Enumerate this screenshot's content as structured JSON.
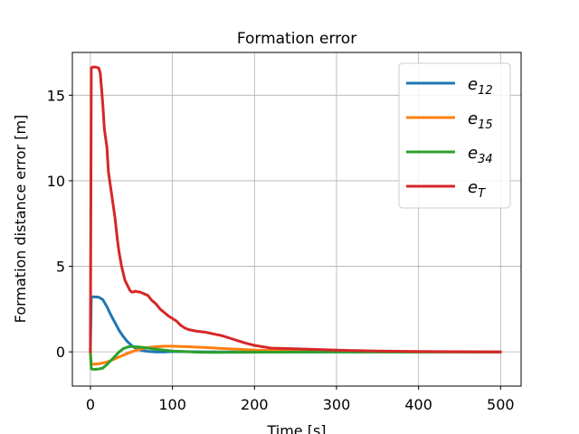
{
  "chart_data": {
    "type": "line",
    "title": "Formation error",
    "xlabel": "Time [s]",
    "ylabel": "Formation distance error [m]",
    "xlim": [
      -22,
      525
    ],
    "ylim": [
      -2.0,
      17.5
    ],
    "xticks": [
      0,
      100,
      200,
      300,
      400,
      500
    ],
    "yticks": [
      0,
      5,
      10,
      15
    ],
    "grid": true,
    "legend_position": "upper right",
    "series": [
      {
        "name": "e12",
        "name_base": "e",
        "name_sub": "12",
        "color": "#1f77b4",
        "x": [
          0,
          1,
          3,
          10,
          15,
          20,
          25,
          30,
          35,
          40,
          45,
          50,
          55,
          60,
          65,
          70,
          80,
          90,
          100,
          150,
          200,
          300,
          400,
          500
        ],
        "y": [
          0,
          3.2,
          3.22,
          3.2,
          3.05,
          2.65,
          2.15,
          1.7,
          1.25,
          0.9,
          0.6,
          0.38,
          0.22,
          0.12,
          0.06,
          0.03,
          0.0,
          0.0,
          0.02,
          0.0,
          0.0,
          0.0,
          0.0,
          0.0
        ]
      },
      {
        "name": "e15",
        "name_base": "e",
        "name_sub": "15",
        "color": "#ff7f0e",
        "x": [
          0,
          1,
          5,
          10,
          20,
          30,
          40,
          50,
          60,
          70,
          80,
          90,
          100,
          120,
          140,
          160,
          180,
          200,
          250,
          300,
          400,
          500
        ],
        "y": [
          0,
          -0.7,
          -0.72,
          -0.7,
          -0.6,
          -0.4,
          -0.2,
          0.0,
          0.15,
          0.25,
          0.3,
          0.33,
          0.33,
          0.3,
          0.25,
          0.2,
          0.15,
          0.1,
          0.05,
          0.02,
          0.0,
          0.0
        ]
      },
      {
        "name": "e34",
        "name_base": "e",
        "name_sub": "34",
        "color": "#2ca02c",
        "x": [
          0,
          1,
          5,
          10,
          15,
          20,
          25,
          30,
          35,
          40,
          45,
          50,
          55,
          60,
          70,
          80,
          100,
          130,
          150,
          200,
          300,
          500
        ],
        "y": [
          0,
          -1.0,
          -1.02,
          -1.0,
          -0.95,
          -0.75,
          -0.5,
          -0.25,
          0.0,
          0.18,
          0.28,
          0.32,
          0.3,
          0.28,
          0.22,
          0.15,
          0.05,
          -0.02,
          -0.03,
          -0.02,
          0.0,
          0.0
        ]
      },
      {
        "name": "eT",
        "name_base": "e",
        "name_sub": "T",
        "color": "#d62728",
        "x": [
          0,
          1,
          3,
          5,
          8,
          10,
          12,
          15,
          17,
          20,
          22,
          25,
          28,
          30,
          33,
          35,
          38,
          40,
          42,
          45,
          48,
          50,
          53,
          55,
          58,
          60,
          65,
          70,
          75,
          80,
          85,
          90,
          95,
          100,
          105,
          110,
          115,
          120,
          130,
          140,
          150,
          160,
          170,
          180,
          190,
          200,
          210,
          220,
          250,
          300,
          350,
          400,
          450,
          500
        ],
        "y": [
          0,
          16.6,
          16.65,
          16.65,
          16.62,
          16.6,
          16.3,
          14.5,
          13.0,
          12.0,
          10.5,
          9.5,
          8.5,
          7.8,
          6.5,
          5.8,
          5.0,
          4.6,
          4.2,
          3.9,
          3.6,
          3.5,
          3.5,
          3.55,
          3.5,
          3.5,
          3.4,
          3.3,
          3.0,
          2.8,
          2.5,
          2.3,
          2.1,
          1.95,
          1.8,
          1.55,
          1.4,
          1.3,
          1.2,
          1.15,
          1.05,
          0.95,
          0.8,
          0.65,
          0.5,
          0.38,
          0.3,
          0.22,
          0.18,
          0.1,
          0.05,
          0.02,
          0.01,
          0.0
        ]
      }
    ]
  }
}
